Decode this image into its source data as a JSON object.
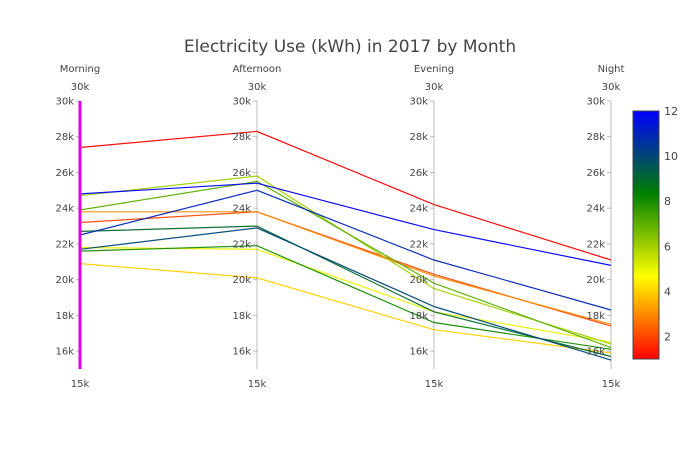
{
  "chart_data": {
    "type": "parallel-coordinates",
    "title": "Electricity Use (kWh) in 2017 by Month",
    "dimensions": [
      {
        "label": "Morning",
        "range": [
          15000,
          30000
        ],
        "range_labels": [
          "15k",
          "30k"
        ],
        "ticks": [
          "16k",
          "18k",
          "20k",
          "22k",
          "24k",
          "26k",
          "28k",
          "30k"
        ]
      },
      {
        "label": "Afternoon",
        "range": [
          15000,
          30000
        ],
        "range_labels": [
          "15k",
          "30k"
        ],
        "ticks": [
          "16k",
          "18k",
          "20k",
          "22k",
          "24k",
          "26k",
          "28k",
          "30k"
        ]
      },
      {
        "label": "Evening",
        "range": [
          15000,
          30000
        ],
        "range_labels": [
          "15k",
          "30k"
        ],
        "ticks": [
          "16k",
          "18k",
          "20k",
          "22k",
          "24k",
          "26k",
          "28k",
          "30k"
        ]
      },
      {
        "label": "Night",
        "range": [
          15000,
          30000
        ],
        "range_labels": [
          "15k",
          "30k"
        ],
        "ticks": [
          "16k",
          "18k",
          "20k",
          "22k",
          "24k",
          "26k",
          "28k",
          "30k"
        ]
      }
    ],
    "tick_values": [
      16000,
      18000,
      20000,
      22000,
      24000,
      26000,
      28000,
      30000
    ],
    "brushed_dimension": "Morning",
    "brush_color": "#e000e0",
    "colorbar": {
      "range": [
        1,
        12
      ],
      "ticks": [
        "2",
        "4",
        "6",
        "8",
        "10",
        "12"
      ],
      "tick_values": [
        2,
        4,
        6,
        8,
        10,
        12
      ],
      "colorscale": [
        "#ff0000",
        "#ffff00",
        "#008000",
        "#0000ff"
      ]
    },
    "series": [
      {
        "month": 1,
        "values": [
          27400,
          28300,
          24200,
          21100
        ]
      },
      {
        "month": 2,
        "values": [
          23200,
          23800,
          20300,
          17400
        ]
      },
      {
        "month": 3,
        "values": [
          23800,
          23800,
          20200,
          17500
        ]
      },
      {
        "month": 4,
        "values": [
          20900,
          20100,
          17200,
          15900
        ]
      },
      {
        "month": 5,
        "values": [
          21800,
          21700,
          18200,
          16500
        ]
      },
      {
        "month": 6,
        "values": [
          24700,
          25800,
          19500,
          16400
        ]
      },
      {
        "month": 7,
        "values": [
          23900,
          25500,
          19800,
          16200
        ]
      },
      {
        "month": 8,
        "values": [
          21600,
          21900,
          17600,
          16100
        ]
      },
      {
        "month": 9,
        "values": [
          22700,
          23000,
          18200,
          15700
        ]
      },
      {
        "month": 10,
        "values": [
          21700,
          22900,
          18500,
          15500
        ]
      },
      {
        "month": 11,
        "values": [
          22500,
          25000,
          21100,
          18300
        ]
      },
      {
        "month": 12,
        "values": [
          24800,
          25400,
          22800,
          20800
        ]
      }
    ]
  }
}
